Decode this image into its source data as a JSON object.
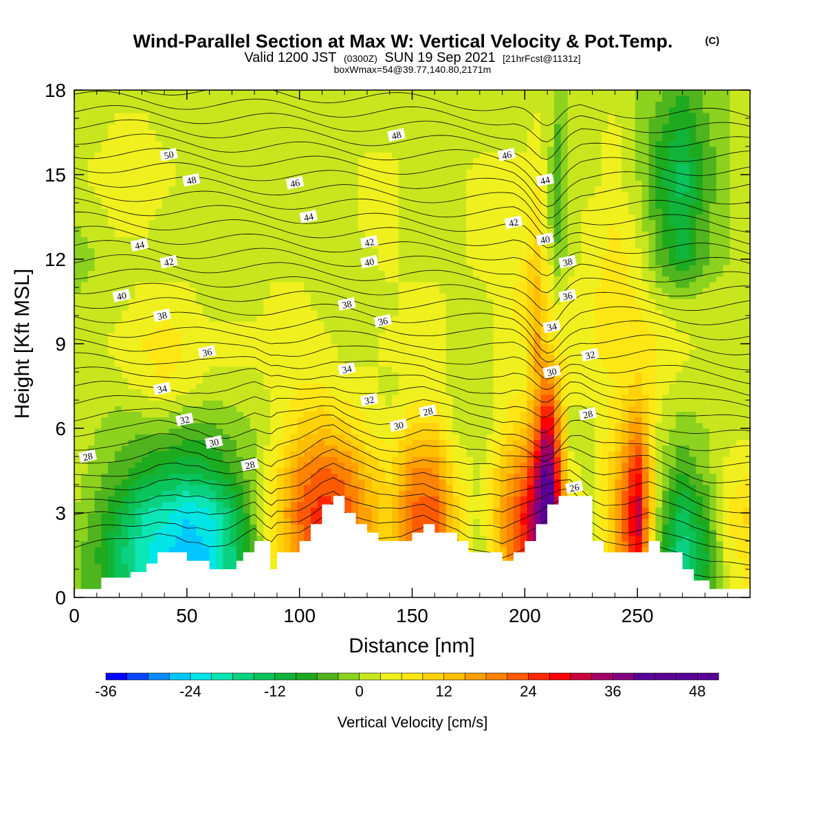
{
  "header": {
    "title": "Wind-Parallel Section at Max W: Vertical Velocity & Pot.Temp.",
    "copyright": "(C)",
    "valid_line": {
      "a": "Valid 1200 JST",
      "b": "(0300Z)",
      "c": "SUN 19 Sep 2021",
      "d": "[21hrFcst@1131z]"
    },
    "box_line": "boxWmax=54@39.77,140.80,2171m"
  },
  "chart_data": {
    "type": "heatmap",
    "title": "Wind-Parallel Section at Max W: Vertical Velocity & Pot.Temp.",
    "xlabel": "Distance [nm]",
    "ylabel": "Height [Kft MSL]",
    "xlim": [
      0,
      300
    ],
    "ylim": [
      0,
      18
    ],
    "xticks": [
      0,
      50,
      100,
      150,
      200,
      250
    ],
    "yticks": [
      0,
      3,
      6,
      9,
      12,
      15,
      18
    ],
    "colorbar": {
      "label": "Vertical Velocity [cm/s]",
      "ticks": [
        -36,
        -24,
        -12,
        0,
        12,
        24,
        36,
        48
      ],
      "bounds": [
        -36,
        51
      ],
      "step": 3,
      "colors": [
        "#0000ff",
        "#0a46ff",
        "#0a8cff",
        "#00c8ff",
        "#00e6e6",
        "#0ae6b4",
        "#0ad282",
        "#0ac35a",
        "#10b43a",
        "#1eaa1e",
        "#50b41e",
        "#8cd21e",
        "#c8e61e",
        "#f0f01e",
        "#ffe614",
        "#ffd20a",
        "#ffbe00",
        "#ffa000",
        "#ff8200",
        "#ff5a00",
        "#ff2800",
        "#ff0000",
        "#c8003c",
        "#a00064",
        "#820082",
        "#5a0096",
        "#5a0096",
        "#5a0096",
        "#5a0096"
      ]
    },
    "wind_grid": {
      "x": [
        0,
        10,
        20,
        30,
        40,
        50,
        60,
        70,
        80,
        90,
        100,
        110,
        120,
        130,
        140,
        150,
        160,
        170,
        180,
        190,
        200,
        205,
        210,
        215,
        220,
        230,
        240,
        250,
        260,
        270,
        280,
        290,
        300
      ],
      "y": [
        0,
        1.5,
        3,
        4.5,
        6,
        7.5,
        9,
        10.5,
        12,
        13.5,
        15,
        16.5,
        18
      ],
      "values": [
        [
          -2,
          -4,
          -12,
          -18,
          -22,
          -24,
          -22,
          -16,
          -6,
          6,
          14,
          18,
          16,
          10,
          6,
          14,
          16,
          4,
          -2,
          10,
          22,
          30,
          48,
          28,
          2,
          -2,
          8,
          20,
          -4,
          -14,
          -8,
          2,
          6
        ],
        [
          -2,
          -6,
          -14,
          -20,
          -24,
          -26,
          -24,
          -16,
          -4,
          8,
          18,
          24,
          20,
          14,
          8,
          20,
          22,
          8,
          0,
          14,
          26,
          34,
          54,
          32,
          4,
          0,
          12,
          30,
          -6,
          -18,
          -10,
          4,
          8
        ],
        [
          0,
          -4,
          -10,
          -18,
          -20,
          -24,
          -22,
          -14,
          -2,
          10,
          22,
          26,
          24,
          16,
          10,
          22,
          24,
          10,
          2,
          16,
          28,
          36,
          52,
          30,
          6,
          2,
          14,
          34,
          -2,
          -14,
          -6,
          6,
          10
        ],
        [
          2,
          -2,
          -4,
          -8,
          -10,
          -12,
          -10,
          -6,
          0,
          8,
          18,
          22,
          20,
          12,
          8,
          18,
          18,
          6,
          2,
          12,
          20,
          30,
          44,
          24,
          4,
          2,
          12,
          28,
          0,
          -6,
          -2,
          4,
          6
        ],
        [
          2,
          0,
          -2,
          -2,
          -2,
          -4,
          -4,
          -2,
          0,
          4,
          10,
          12,
          10,
          6,
          4,
          10,
          10,
          2,
          0,
          6,
          12,
          20,
          34,
          18,
          2,
          2,
          8,
          18,
          2,
          -2,
          0,
          2,
          2
        ],
        [
          2,
          2,
          2,
          4,
          6,
          4,
          2,
          2,
          2,
          4,
          6,
          6,
          4,
          4,
          2,
          4,
          4,
          2,
          2,
          4,
          6,
          14,
          22,
          12,
          4,
          4,
          6,
          10,
          4,
          2,
          2,
          2,
          2
        ],
        [
          2,
          2,
          4,
          6,
          8,
          6,
          4,
          4,
          4,
          4,
          4,
          4,
          2,
          2,
          4,
          4,
          4,
          2,
          2,
          4,
          6,
          16,
          10,
          6,
          4,
          6,
          8,
          8,
          6,
          4,
          2,
          2,
          2
        ],
        [
          0,
          2,
          2,
          4,
          4,
          4,
          2,
          2,
          2,
          4,
          4,
          2,
          0,
          2,
          2,
          4,
          4,
          2,
          2,
          4,
          8,
          14,
          8,
          2,
          4,
          6,
          8,
          6,
          2,
          0,
          2,
          2,
          2
        ],
        [
          -2,
          0,
          2,
          2,
          2,
          2,
          2,
          2,
          2,
          2,
          2,
          2,
          2,
          2,
          4,
          2,
          2,
          2,
          4,
          4,
          6,
          12,
          4,
          -2,
          2,
          4,
          8,
          4,
          -4,
          -10,
          -4,
          0,
          2
        ],
        [
          0,
          2,
          4,
          4,
          2,
          2,
          2,
          2,
          2,
          2,
          2,
          2,
          2,
          4,
          4,
          2,
          2,
          2,
          4,
          4,
          4,
          8,
          2,
          -6,
          2,
          4,
          6,
          2,
          -6,
          -12,
          -4,
          0,
          2
        ],
        [
          2,
          4,
          6,
          6,
          4,
          2,
          2,
          2,
          2,
          2,
          2,
          2,
          2,
          4,
          4,
          2,
          2,
          2,
          4,
          4,
          4,
          6,
          2,
          -6,
          0,
          2,
          4,
          0,
          -8,
          -14,
          -6,
          0,
          2
        ],
        [
          2,
          2,
          4,
          4,
          2,
          2,
          2,
          2,
          2,
          2,
          2,
          2,
          2,
          2,
          2,
          2,
          2,
          2,
          2,
          2,
          2,
          4,
          2,
          -4,
          0,
          2,
          4,
          0,
          -6,
          -10,
          -4,
          0,
          2
        ],
        [
          0,
          2,
          2,
          2,
          2,
          2,
          0,
          0,
          0,
          2,
          2,
          0,
          0,
          2,
          2,
          0,
          0,
          2,
          2,
          2,
          2,
          2,
          2,
          -2,
          0,
          2,
          2,
          0,
          -2,
          -6,
          -2,
          0,
          0
        ]
      ]
    },
    "terrain": {
      "x": [
        0,
        12,
        25,
        32,
        37,
        45,
        50,
        55,
        60,
        68,
        72,
        75,
        80,
        87,
        90,
        100,
        105,
        110,
        115,
        120,
        125,
        130,
        135,
        145,
        150,
        155,
        160,
        170,
        175,
        185,
        190,
        195,
        200,
        205,
        210,
        215,
        220,
        230,
        235,
        240,
        245,
        255,
        260,
        270,
        275,
        282,
        290,
        300
      ],
      "height": [
        0.3,
        0.7,
        0.9,
        1.2,
        1.6,
        1.6,
        1.3,
        1.3,
        1.0,
        1.0,
        1.3,
        1.6,
        2.0,
        1.0,
        1.6,
        2.0,
        2.6,
        3.3,
        3.6,
        3.0,
        2.6,
        2.3,
        2.0,
        2.0,
        2.3,
        2.6,
        2.3,
        2.0,
        1.6,
        1.6,
        1.3,
        1.6,
        2.0,
        2.6,
        3.3,
        3.6,
        3.6,
        2.0,
        1.6,
        1.6,
        1.6,
        2.0,
        1.6,
        1.0,
        0.6,
        0.3,
        0.3,
        0.3
      ]
    },
    "theta_labels": [
      {
        "text": "50",
        "x": 42,
        "y": 15.7
      },
      {
        "text": "48",
        "x": 52,
        "y": 14.8
      },
      {
        "text": "46",
        "x": 98,
        "y": 14.7
      },
      {
        "text": "48",
        "x": 143,
        "y": 16.4
      },
      {
        "text": "46",
        "x": 192,
        "y": 15.7
      },
      {
        "text": "44",
        "x": 104,
        "y": 13.5
      },
      {
        "text": "44",
        "x": 29,
        "y": 12.5
      },
      {
        "text": "44",
        "x": 209,
        "y": 14.8
      },
      {
        "text": "42",
        "x": 42,
        "y": 11.9
      },
      {
        "text": "42",
        "x": 131,
        "y": 12.6
      },
      {
        "text": "42",
        "x": 195,
        "y": 13.3
      },
      {
        "text": "40",
        "x": 21,
        "y": 10.7
      },
      {
        "text": "40",
        "x": 131,
        "y": 11.9
      },
      {
        "text": "40",
        "x": 209,
        "y": 12.7
      },
      {
        "text": "38",
        "x": 39,
        "y": 10.0
      },
      {
        "text": "38",
        "x": 121,
        "y": 10.4
      },
      {
        "text": "38",
        "x": 219,
        "y": 11.9
      },
      {
        "text": "36",
        "x": 59,
        "y": 8.7
      },
      {
        "text": "36",
        "x": 137,
        "y": 9.8
      },
      {
        "text": "36",
        "x": 219,
        "y": 10.7
      },
      {
        "text": "34",
        "x": 39,
        "y": 7.4
      },
      {
        "text": "34",
        "x": 121,
        "y": 8.1
      },
      {
        "text": "34",
        "x": 212,
        "y": 9.6
      },
      {
        "text": "32",
        "x": 49,
        "y": 6.3
      },
      {
        "text": "32",
        "x": 131,
        "y": 7.0
      },
      {
        "text": "32",
        "x": 229,
        "y": 8.6
      },
      {
        "text": "30",
        "x": 62,
        "y": 5.5
      },
      {
        "text": "30",
        "x": 144,
        "y": 6.1
      },
      {
        "text": "30",
        "x": 212,
        "y": 8.0
      },
      {
        "text": "28",
        "x": 6,
        "y": 5.0
      },
      {
        "text": "28",
        "x": 78,
        "y": 4.7
      },
      {
        "text": "28",
        "x": 157,
        "y": 6.6
      },
      {
        "text": "28",
        "x": 228,
        "y": 6.5
      },
      {
        "text": "26",
        "x": 222,
        "y": 3.9
      }
    ]
  }
}
